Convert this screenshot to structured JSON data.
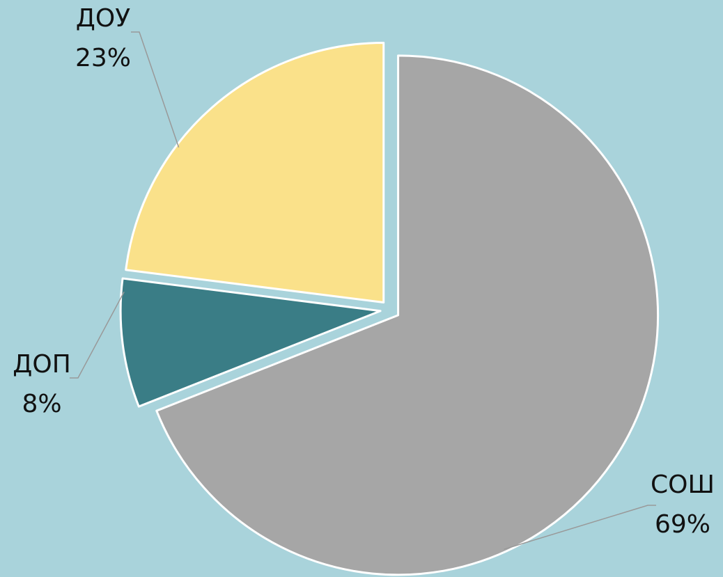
{
  "chart_data": {
    "type": "pie",
    "categories": [
      "СОШ",
      "ДОП",
      "ДОУ"
    ],
    "values": [
      69,
      8,
      23
    ],
    "value_labels": [
      "69%",
      "8%",
      "23%"
    ],
    "colors": [
      "#a6a6a6",
      "#3a7d86",
      "#fae18a"
    ]
  }
}
